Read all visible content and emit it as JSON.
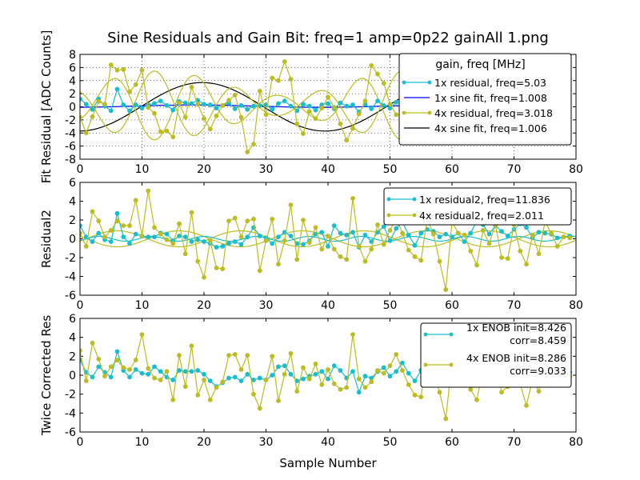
{
  "figure": {
    "title": "Sine Residuals and Gain Bit: freq=1 amp=0p22 gainAll 1.png",
    "xlabel": "Sample Number"
  },
  "colors": {
    "cyan": "#17becf",
    "olive": "#bcbd22",
    "blue": "#0000ff",
    "black": "#000000"
  },
  "chart_data": [
    {
      "id": "p1",
      "type": "line",
      "ylabel": "Fit Residual [ADC Counts]",
      "xlim": [
        0,
        80
      ],
      "ylim": [
        -8,
        8
      ],
      "xticks": [
        0,
        10,
        20,
        30,
        40,
        50,
        60,
        70,
        80
      ],
      "yticks": [
        -8,
        -6,
        -4,
        -2,
        0,
        2,
        4,
        6,
        8
      ],
      "grid": true,
      "x_max_data": 52,
      "legend": {
        "title": "gain, freq [MHz]",
        "position": "upper-right",
        "entries": [
          {
            "label": "1x residual, freq=5.03",
            "series": "res1x"
          },
          {
            "label": "1x sine fit, freq=1.008",
            "series": "fit1x"
          },
          {
            "label": "4x residual, freq=3.018",
            "series": "res4x"
          },
          {
            "label": "4x sine fit, freq=1.006",
            "series": "fit4x"
          }
        ]
      },
      "series": [
        {
          "key": "fit1x",
          "name": "1x sine fit, freq=1.008",
          "kind": "sine",
          "color": "blue",
          "amp": 0.18,
          "period": 40.3,
          "phase": 8.5,
          "offset": 0.1
        },
        {
          "key": "fit4x",
          "name": "4x sine fit, freq=1.006",
          "kind": "sine",
          "color": "black",
          "amp": 3.7,
          "period": 39.6,
          "phase": 9.8,
          "offset": 0
        },
        {
          "key": "smooth4x",
          "name": "",
          "kind": "smooth",
          "color": "olive",
          "legend": false,
          "curves": [
            {
              "amp": 3.4,
              "period": 13.3,
              "phase": 2.0,
              "offset": 0.2,
              "env_amp": 0.55,
              "env_period": 39.8,
              "env_phase": 3.0
            },
            {
              "amp": 3.4,
              "period": 13.3,
              "phase": 8.65,
              "offset": 0.2,
              "env_amp": 0.55,
              "env_period": 39.8,
              "env_phase": 3.0
            }
          ]
        },
        {
          "key": "res1x",
          "name": "1x residual, freq=5.03",
          "kind": "markers",
          "color": "cyan",
          "y": [
            1.2,
            0.4,
            -0.4,
            1.2,
            0.1,
            -0.6,
            2.7,
            0.3,
            -0.6,
            0.3,
            -0.2,
            0.3,
            0.5,
            0.9,
            0.2,
            -0.5,
            0.8,
            0.6,
            0.5,
            1.0,
            0.4,
            0.3,
            -0.2,
            0.2,
            0.6,
            -0.3,
            0.2,
            -0.4,
            0.1,
            0.2,
            0.3,
            -0.4,
            0.5,
            0.9,
            0.1,
            -0.6,
            0.4,
            0.1,
            -0.5,
            0.3,
            0.5,
            -0.3,
            0.6,
            0.1,
            0.3,
            -0.8,
            0.4,
            -0.3,
            0.9,
            0.2,
            -0.2,
            0.7
          ]
        },
        {
          "key": "res4x",
          "name": "4x residual, freq=3.018",
          "kind": "markers",
          "color": "olive",
          "y": [
            -1.6,
            -4.0,
            -1.5,
            0.8,
            0.4,
            6.4,
            5.6,
            5.7,
            2.3,
            3.4,
            5.6,
            -0.1,
            -1.0,
            -3.8,
            -3.7,
            -4.6,
            0.6,
            -1.6,
            3.0,
            0.4,
            -1.8,
            -3.4,
            -1.4,
            0.2,
            1.0,
            1.8,
            -1.6,
            -6.9,
            -5.7,
            2.4,
            -1.2,
            4.4,
            4.0,
            6.9,
            4.2,
            -2.6,
            -4.1,
            -0.7,
            -1.8,
            -0.2,
            1.5,
            -0.1,
            -2.6,
            -5.1,
            -3.3,
            -1.1,
            0.9,
            6.3,
            5.0,
            3.6,
            0.4,
            -1.2
          ]
        }
      ]
    },
    {
      "id": "p2",
      "type": "line",
      "ylabel": "Residual2",
      "xlim": [
        0,
        80
      ],
      "ylim": [
        -6,
        6
      ],
      "xticks": [
        0,
        10,
        20,
        30,
        40,
        50,
        60,
        70,
        80
      ],
      "yticks": [
        -6,
        -4,
        -2,
        0,
        2,
        4,
        6
      ],
      "grid": false,
      "x_max_data": 80,
      "legend": {
        "position": "upper-right",
        "entries": [
          {
            "label": "1x residual2, freq=11.836",
            "series": "r2_1x"
          },
          {
            "label": "4x residual2, freq=2.011",
            "series": "r2_4x"
          }
        ]
      },
      "series": [
        {
          "key": "smooth2",
          "name": "",
          "kind": "smooth",
          "color": "olive",
          "legend": false,
          "curves": [
            {
              "amp": 0.85,
              "period": 19.9,
              "phase": 1.0,
              "offset": 0,
              "env_amp": 0,
              "env_period": 1,
              "env_phase": 0
            },
            {
              "amp": 0.85,
              "period": 19.9,
              "phase": 11.0,
              "offset": 0,
              "env_amp": 0,
              "env_period": 1,
              "env_phase": 0
            }
          ]
        },
        {
          "key": "sine2",
          "name": "",
          "kind": "sine",
          "color": "cyan",
          "legend": false,
          "amp": 0.25,
          "period": 8.45,
          "phase": 1.0,
          "offset": 0
        },
        {
          "key": "r2_1x",
          "name": "1x residual2, freq=11.836",
          "kind": "markers",
          "color": "cyan",
          "y": [
            1.4,
            0.2,
            -0.3,
            0.6,
            -0.1,
            -0.3,
            2.7,
            0.2,
            -0.5,
            0.5,
            0.3,
            0.2,
            0.2,
            0.6,
            0.5,
            -0.2,
            0.3,
            0.2,
            -0.3,
            -0.1,
            -0.3,
            -0.5,
            -0.9,
            -0.8,
            -0.5,
            -0.3,
            -0.6,
            0.2,
            1.2,
            0.3,
            0.1,
            -0.5,
            0.2,
            0.7,
            0.3,
            -0.5,
            -0.6,
            -0.2,
            0.5,
            0.7,
            -0.8,
            1.4,
            0.6,
            0.4,
            0.7,
            -0.9,
            0.4,
            -0.3,
            0.7,
            1.3,
            -0.2,
            1.1,
            1.8,
            0.4,
            -0.7,
            0.6,
            1.0,
            0.8,
            0.2,
            0.5,
            0.2,
            0.6,
            -0.3,
            0.6,
            1.9,
            1.5,
            0.5,
            1.4,
            0.8,
            0.3,
            1.0,
            1.6,
            1.2,
            0.1,
            0.7,
            0.6,
            0.5,
            0.1,
            0.2,
            0.3
          ]
        },
        {
          "key": "r2_4x",
          "name": "4x residual2, freq=2.011",
          "kind": "markers",
          "color": "olive",
          "y": [
            0.6,
            -0.8,
            2.9,
            1.9,
            0.2,
            0.9,
            1.9,
            1.4,
            1.4,
            4.1,
            0.3,
            5.1,
            1.2,
            0.5,
            -0.1,
            -0.5,
            1.6,
            -1.6,
            2.8,
            -2.4,
            -4.1,
            -0.2,
            -3.1,
            -3.2,
            1.9,
            2.2,
            0.2,
            1.9,
            2.1,
            -3.4,
            -0.2,
            2.1,
            -2.7,
            -0.2,
            3.6,
            -2.2,
            2.0,
            -0.4,
            1.2,
            -1.1,
            0.3,
            -1.1,
            -1.9,
            -2.2,
            4.3,
            -0.8,
            -2.4,
            -1.1,
            1.5,
            -0.6,
            0.9,
            2.2,
            0.6,
            -1.2,
            -1.9,
            -2.3,
            2.1,
            0.5,
            -2.4,
            -5.4,
            1.8,
            0.6,
            0.4,
            -1.3,
            -2.8,
            0.9,
            -0.5,
            1.5,
            -2.0,
            -2.1,
            1.5,
            -1.3,
            -2.7,
            0.4,
            -1.6,
            1.8,
            0.6,
            -0.8,
            0.2,
            0.1
          ]
        }
      ]
    },
    {
      "id": "p3",
      "type": "line",
      "ylabel": "Twice Corrected Res",
      "xlim": [
        0,
        80
      ],
      "ylim": [
        -6,
        6
      ],
      "xticks": [
        0,
        10,
        20,
        30,
        40,
        50,
        60,
        70,
        80
      ],
      "yticks": [
        -6,
        -4,
        -2,
        0,
        2,
        4,
        6
      ],
      "grid": false,
      "x_max_data": 80,
      "legend": {
        "position": "upper-right",
        "entries": [
          {
            "label": "1x ENOB init=8.426",
            "label2": "corr=8.459",
            "series": "r3_1x"
          },
          {
            "label": "4x ENOB init=8.286",
            "label2": "corr=9.033",
            "series": "r3_4x"
          }
        ]
      },
      "series": [
        {
          "key": "r3_1x",
          "name": "1x ENOB init=8.426 corr=8.459",
          "kind": "markers",
          "color": "cyan",
          "y": [
            1.6,
            0.3,
            -0.2,
            0.9,
            0.3,
            -0.2,
            2.5,
            0.5,
            -0.2,
            0.6,
            0.2,
            0.1,
            0.9,
            0.4,
            -0.2,
            -0.5,
            0.5,
            0.4,
            0.4,
            0.5,
            0.1,
            -0.6,
            -1.2,
            -0.8,
            -0.3,
            -0.2,
            -0.6,
            0.1,
            -0.5,
            -0.3,
            -0.5,
            0.0,
            0.9,
            1.0,
            0.1,
            -0.6,
            -0.4,
            -0.1,
            0.1,
            0.4,
            -0.4,
            1.0,
            0.5,
            -0.3,
            0.4,
            -1.8,
            -0.1,
            -0.3,
            0.4,
            0.8,
            -0.1,
            0.4,
            1.3,
            0.2,
            -0.6,
            0.5,
            0.5,
            0.9,
            0.2,
            0.3,
            0.0,
            0.7,
            0.1,
            0.4,
            0.8,
            1.1,
            0.3,
            0.5,
            0.6,
            0.2,
            0.4,
            1.0,
            0.7,
            0.1,
            0.6,
            0.4,
            0.3,
            0.2,
            0.1,
            0.3
          ]
        },
        {
          "key": "r3_4x",
          "name": "4x ENOB init=8.286 corr=9.033",
          "kind": "markers",
          "color": "olive",
          "y": [
            2.6,
            -0.6,
            3.4,
            1.7,
            -0.1,
            0.9,
            1.6,
            0.8,
            0.6,
            1.6,
            4.3,
            0.7,
            -0.3,
            -0.5,
            0.4,
            -2.6,
            2.1,
            -1.2,
            3.1,
            -2.1,
            -0.5,
            -2.6,
            -1.3,
            -0.7,
            2.1,
            2.2,
            0.6,
            2.1,
            -2.0,
            -3.5,
            -0.5,
            2.0,
            -2.7,
            0.1,
            2.3,
            -1.7,
            0.8,
            -0.4,
            1.2,
            -1.0,
            0.6,
            -0.9,
            -1.5,
            -1.3,
            4.3,
            -0.4,
            -1.3,
            -0.7,
            0.5,
            0.2,
            1.0,
            2.2,
            0.5,
            -1.0,
            -2.1,
            -2.3,
            2.3,
            0.3,
            -1.8,
            -4.6,
            1.5,
            0.4,
            -0.1,
            -1.5,
            -2.6,
            0.7,
            -0.3,
            1.6,
            -1.8,
            -1.2,
            1.2,
            -0.9,
            -3.2,
            -0.4,
            -1.7,
            1.3,
            0.5,
            -0.6,
            0.4,
            -0.1
          ]
        }
      ]
    }
  ]
}
